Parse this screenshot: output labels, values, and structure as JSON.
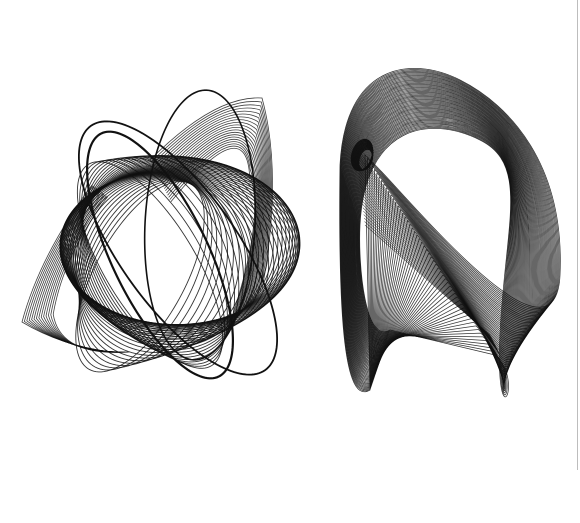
{
  "figure": {
    "description_free": true,
    "ink_color": "#111111",
    "background_color": "#ffffff",
    "left_figure": {
      "icon": "lissajous-surface-left",
      "curve_count": 46
    },
    "right_figure": {
      "icon": "string-surface-right",
      "curve_count": 56
    }
  }
}
